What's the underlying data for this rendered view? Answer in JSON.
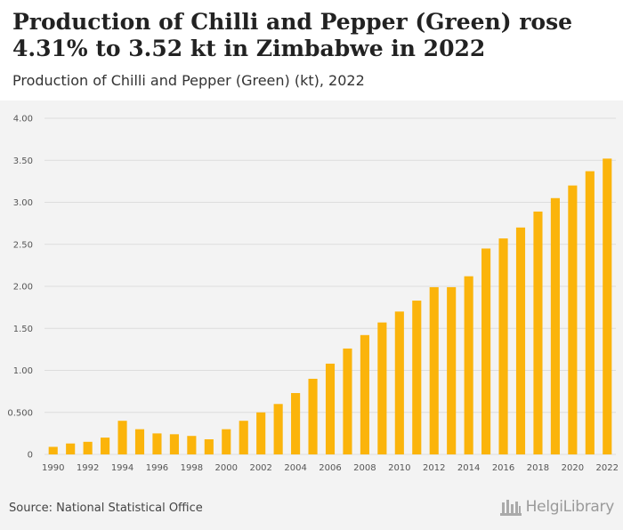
{
  "header": {
    "title": "Production of Chilli and Pepper (Green) rose 4.31% to 3.52 kt in Zimbabwe in 2022",
    "subtitle": "Production of Chilli and Pepper (Green) (kt), 2022"
  },
  "footer": {
    "source": "Source: National Statistical Office",
    "logo_text": "HelgiLibrary"
  },
  "colors": {
    "bar": "#fbb40b",
    "grid": "#dddddd",
    "axis_text": "#555555"
  },
  "chart_data": {
    "type": "bar",
    "title": "Production of Chilli and Pepper (Green) rose 4.31% to 3.52 kt in Zimbabwe in 2022",
    "subtitle": "Production of Chilli and Pepper (Green) (kt), 2022",
    "xlabel": "",
    "ylabel": "",
    "ylim": [
      0,
      4
    ],
    "grid": true,
    "y_ticks": [
      "0",
      "0.500",
      "1.00",
      "1.50",
      "2.00",
      "2.50",
      "3.00",
      "3.50",
      "4.00"
    ],
    "categories": [
      "1990",
      "1991",
      "1992",
      "1993",
      "1994",
      "1995",
      "1996",
      "1997",
      "1998",
      "1999",
      "2000",
      "2001",
      "2002",
      "2003",
      "2004",
      "2005",
      "2006",
      "2007",
      "2008",
      "2009",
      "2010",
      "2011",
      "2012",
      "2013",
      "2014",
      "2015",
      "2016",
      "2017",
      "2018",
      "2019",
      "2020",
      "2021",
      "2022"
    ],
    "x_tick_labels": [
      "1990",
      "1992",
      "1994",
      "1996",
      "1998",
      "2000",
      "2002",
      "2004",
      "2006",
      "2008",
      "2010",
      "2012",
      "2014",
      "2016",
      "2018",
      "2020",
      "2022"
    ],
    "values": [
      0.09,
      0.13,
      0.15,
      0.2,
      0.4,
      0.3,
      0.25,
      0.24,
      0.22,
      0.18,
      0.3,
      0.4,
      0.5,
      0.6,
      0.73,
      0.9,
      1.08,
      1.26,
      1.42,
      1.57,
      1.7,
      1.83,
      1.99,
      1.99,
      2.12,
      2.45,
      2.57,
      2.7,
      2.89,
      3.05,
      3.2,
      3.37,
      3.52
    ]
  }
}
